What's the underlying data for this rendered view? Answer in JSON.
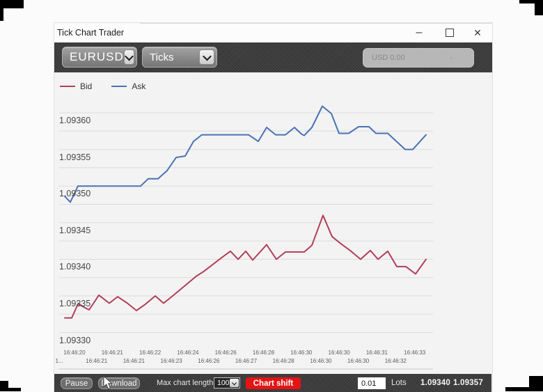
{
  "window": {
    "title": "Tick Chart Trader",
    "controls": {
      "minimize": "–",
      "close": "✕"
    }
  },
  "toolbar": {
    "symbol": "EURUSD",
    "chart_type": "Ticks",
    "account_value": "USD 0.00",
    "account_extra": "-"
  },
  "legend": {
    "items": [
      {
        "label": "Bid",
        "color": "#b23e58"
      },
      {
        "label": "Ask",
        "color": "#4a72b4"
      }
    ]
  },
  "chart_data": {
    "type": "line",
    "title": "",
    "legend_position": "top-left",
    "grid": true,
    "y_axis": {
      "tick_labels": [
        "1.09360",
        "1.09355",
        "1.09350",
        "1.09345",
        "1.09340",
        "1.09335",
        "1.09330"
      ],
      "top_value": 1.0936,
      "label_step": 5e-05,
      "gridline_step": 2.5e-05,
      "gridline_count": 13,
      "range": [
        1.0933,
        1.0936
      ]
    },
    "x_axis": {
      "row1": [
        "16:46:20",
        "16:46:21",
        "16:46:22",
        "16:46:24",
        "16:46:26",
        "16:46:28",
        "16:46:30",
        "16:46:30",
        "16:46:31",
        "16:46:33"
      ],
      "row2": [
        "1...",
        "16:46:21",
        "16:46:21",
        "16:46:23",
        "16:46:26",
        "16:46:27",
        "16:46:28",
        "16:46:30",
        "16:46:30",
        "16:46:32"
      ]
    },
    "series": [
      {
        "name": "Bid",
        "color": "#b23e58",
        "points": [
          [
            93,
            1.09332
          ],
          [
            103,
            1.09332
          ],
          [
            112,
            1.093339
          ],
          [
            128,
            1.093331
          ],
          [
            142,
            1.093351
          ],
          [
            157,
            1.09334
          ],
          [
            169,
            1.093349
          ],
          [
            183,
            1.09334
          ],
          [
            196,
            1.09333
          ],
          [
            208,
            1.093338
          ],
          [
            223,
            1.09335
          ],
          [
            235,
            1.09334
          ],
          [
            248,
            1.09335
          ],
          [
            262,
            1.093361
          ],
          [
            272,
            1.093369
          ],
          [
            282,
            1.093377
          ],
          [
            292,
            1.093383
          ],
          [
            303,
            1.093391
          ],
          [
            318,
            1.093402
          ],
          [
            331,
            1.093411
          ],
          [
            342,
            1.0934
          ],
          [
            353,
            1.093411
          ],
          [
            363,
            1.093399
          ],
          [
            383,
            1.09342
          ],
          [
            397,
            1.0934
          ],
          [
            410,
            1.09341
          ],
          [
            437,
            1.09341
          ],
          [
            448,
            1.093419
          ],
          [
            464,
            1.09346
          ],
          [
            477,
            1.093431
          ],
          [
            490,
            1.093421
          ],
          [
            503,
            1.093412
          ],
          [
            518,
            1.0934
          ],
          [
            532,
            1.093412
          ],
          [
            543,
            1.0934
          ],
          [
            557,
            1.093411
          ],
          [
            570,
            1.09339
          ],
          [
            583,
            1.09339
          ],
          [
            597,
            1.09338
          ],
          [
            612,
            1.0934
          ]
        ]
      },
      {
        "name": "Ask",
        "color": "#4a72b4",
        "points": [
          [
            93,
            1.093486
          ],
          [
            101,
            1.093478
          ],
          [
            112,
            1.0935
          ],
          [
            202,
            1.0935
          ],
          [
            213,
            1.09351
          ],
          [
            227,
            1.09351
          ],
          [
            240,
            1.093521
          ],
          [
            253,
            1.093539
          ],
          [
            266,
            1.093541
          ],
          [
            278,
            1.093561
          ],
          [
            290,
            1.09357
          ],
          [
            357,
            1.09357
          ],
          [
            371,
            1.093561
          ],
          [
            383,
            1.09358
          ],
          [
            396,
            1.09357
          ],
          [
            410,
            1.09357
          ],
          [
            423,
            1.09358
          ],
          [
            433,
            1.093571
          ],
          [
            437,
            1.093569
          ],
          [
            448,
            1.09358
          ],
          [
            463,
            1.093609
          ],
          [
            476,
            1.093599
          ],
          [
            487,
            1.093572
          ],
          [
            501,
            1.093572
          ],
          [
            515,
            1.093581
          ],
          [
            530,
            1.093581
          ],
          [
            540,
            1.093572
          ],
          [
            557,
            1.093572
          ],
          [
            582,
            1.09355
          ],
          [
            593,
            1.09355
          ],
          [
            612,
            1.09357
          ]
        ]
      }
    ]
  },
  "bottom_bar": {
    "pause": "Pause",
    "download": "Download",
    "max_chart_length_label": "Max chart length:",
    "max_chart_length_value": "100",
    "chart_shift": "Chart shift",
    "lots_value": "0.01",
    "lots_label": "Lots",
    "bid_price": "1.09340",
    "ask_price": "1.09357"
  }
}
